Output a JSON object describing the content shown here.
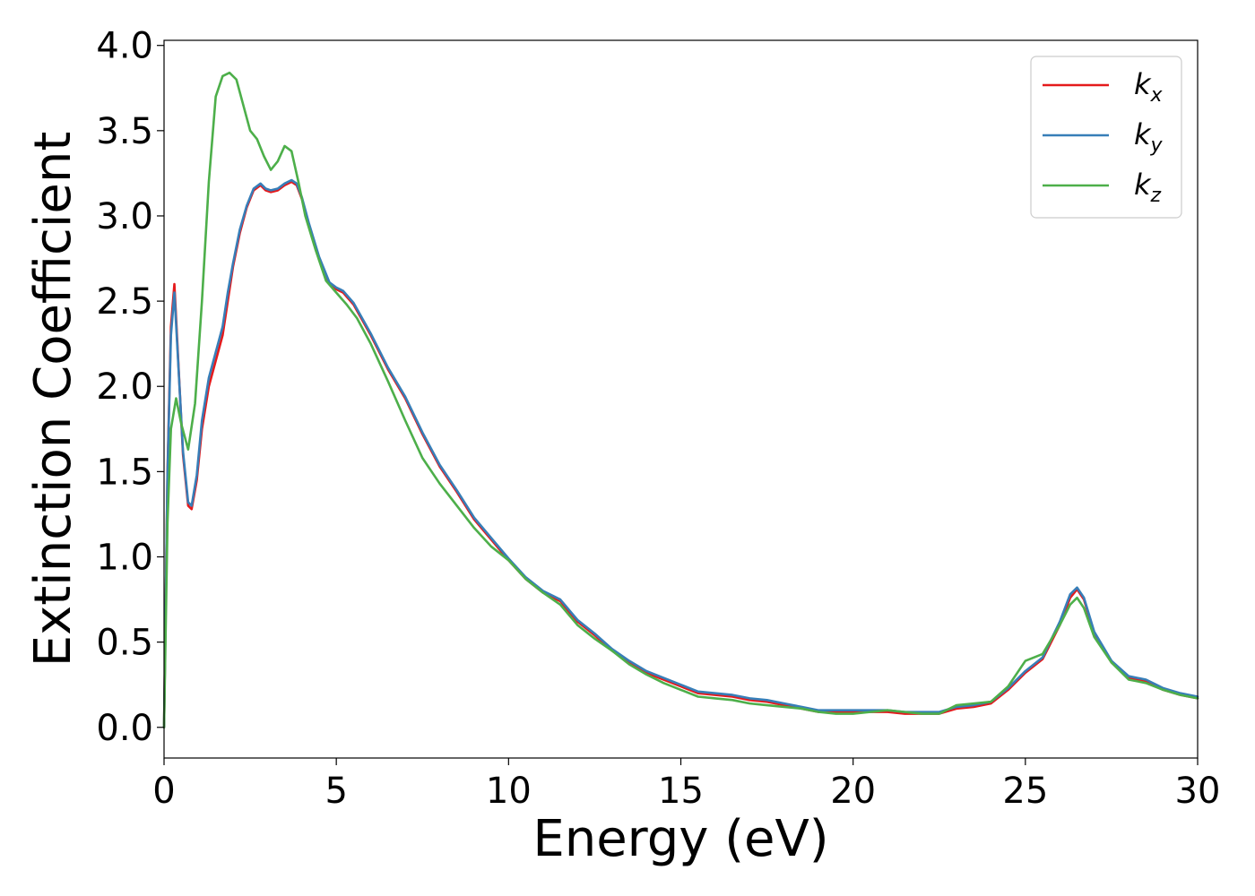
{
  "chart_data": {
    "type": "line",
    "xlabel": "Energy (eV)",
    "ylabel": "Extinction Coefficient",
    "xlim": [
      0,
      30
    ],
    "ylim": [
      -0.18,
      4.03
    ],
    "xticks": [
      0,
      5,
      10,
      15,
      20,
      25,
      30
    ],
    "xtick_labels": [
      "0",
      "5",
      "10",
      "15",
      "20",
      "25",
      "30"
    ],
    "yticks": [
      0.0,
      0.5,
      1.0,
      1.5,
      2.0,
      2.5,
      3.0,
      3.5,
      4.0
    ],
    "ytick_labels": [
      "0.0",
      "0.5",
      "1.0",
      "1.5",
      "2.0",
      "2.5",
      "3.0",
      "3.5",
      "4.0"
    ],
    "grid": false,
    "legend_position": "top-right",
    "series": [
      {
        "name": "k_x",
        "label_base": "k",
        "label_sub": "x",
        "color": "#e41a1c",
        "x": [
          0,
          0.1,
          0.2,
          0.3,
          0.4,
          0.55,
          0.7,
          0.8,
          0.95,
          1.1,
          1.3,
          1.5,
          1.7,
          1.85,
          2.0,
          2.2,
          2.4,
          2.6,
          2.8,
          2.95,
          3.1,
          3.3,
          3.5,
          3.7,
          3.85,
          4.0,
          4.2,
          4.5,
          4.8,
          5.0,
          5.2,
          5.5,
          6.0,
          6.5,
          7.0,
          7.5,
          8.0,
          8.5,
          9.0,
          9.5,
          10.0,
          10.5,
          11.0,
          11.5,
          12.0,
          12.5,
          13.0,
          13.5,
          14.0,
          14.5,
          15.0,
          15.5,
          16.0,
          16.5,
          17.0,
          17.5,
          18.0,
          18.5,
          19.0,
          19.5,
          20.0,
          20.5,
          21.0,
          21.5,
          22.0,
          22.5,
          23.0,
          23.5,
          24.0,
          24.5,
          25.0,
          25.5,
          26.0,
          26.3,
          26.5,
          26.7,
          27.0,
          27.5,
          28.0,
          28.5,
          29.0,
          29.5,
          30.0
        ],
        "y": [
          0.0,
          1.5,
          2.35,
          2.6,
          2.2,
          1.6,
          1.3,
          1.28,
          1.45,
          1.75,
          2.0,
          2.15,
          2.3,
          2.5,
          2.7,
          2.9,
          3.05,
          3.15,
          3.18,
          3.15,
          3.14,
          3.15,
          3.18,
          3.2,
          3.18,
          3.1,
          2.95,
          2.75,
          2.6,
          2.57,
          2.55,
          2.48,
          2.3,
          2.1,
          1.93,
          1.72,
          1.53,
          1.38,
          1.22,
          1.1,
          0.98,
          0.87,
          0.79,
          0.74,
          0.62,
          0.54,
          0.45,
          0.38,
          0.32,
          0.28,
          0.24,
          0.2,
          0.19,
          0.18,
          0.16,
          0.15,
          0.13,
          0.11,
          0.09,
          0.09,
          0.09,
          0.09,
          0.09,
          0.08,
          0.08,
          0.08,
          0.11,
          0.12,
          0.14,
          0.22,
          0.32,
          0.4,
          0.6,
          0.76,
          0.81,
          0.75,
          0.55,
          0.38,
          0.29,
          0.27,
          0.22,
          0.19,
          0.17
        ]
      },
      {
        "name": "k_y",
        "label_base": "k",
        "label_sub": "y",
        "color": "#377eb8",
        "x": [
          0,
          0.1,
          0.2,
          0.3,
          0.4,
          0.55,
          0.7,
          0.8,
          0.95,
          1.1,
          1.3,
          1.5,
          1.7,
          1.85,
          2.0,
          2.2,
          2.4,
          2.6,
          2.8,
          2.95,
          3.1,
          3.3,
          3.5,
          3.7,
          3.85,
          4.0,
          4.2,
          4.5,
          4.8,
          5.0,
          5.2,
          5.5,
          6.0,
          6.5,
          7.0,
          7.5,
          8.0,
          8.5,
          9.0,
          9.5,
          10.0,
          10.5,
          11.0,
          11.5,
          12.0,
          12.5,
          13.0,
          13.5,
          14.0,
          14.5,
          15.0,
          15.5,
          16.0,
          16.5,
          17.0,
          17.5,
          18.0,
          18.5,
          19.0,
          19.5,
          20.0,
          20.5,
          21.0,
          21.5,
          22.0,
          22.5,
          23.0,
          23.5,
          24.0,
          24.5,
          25.0,
          25.5,
          26.0,
          26.3,
          26.5,
          26.7,
          27.0,
          27.5,
          28.0,
          28.5,
          29.0,
          29.5,
          30.0
        ],
        "y": [
          0.0,
          1.48,
          2.3,
          2.55,
          2.18,
          1.62,
          1.32,
          1.3,
          1.48,
          1.8,
          2.05,
          2.2,
          2.35,
          2.55,
          2.72,
          2.92,
          3.06,
          3.16,
          3.19,
          3.16,
          3.15,
          3.16,
          3.19,
          3.21,
          3.19,
          3.11,
          2.96,
          2.76,
          2.61,
          2.58,
          2.56,
          2.49,
          2.31,
          2.11,
          1.94,
          1.73,
          1.54,
          1.39,
          1.23,
          1.11,
          0.99,
          0.88,
          0.8,
          0.75,
          0.63,
          0.55,
          0.46,
          0.39,
          0.33,
          0.29,
          0.25,
          0.21,
          0.2,
          0.19,
          0.17,
          0.16,
          0.14,
          0.12,
          0.1,
          0.1,
          0.1,
          0.1,
          0.1,
          0.09,
          0.09,
          0.09,
          0.12,
          0.13,
          0.15,
          0.23,
          0.33,
          0.41,
          0.62,
          0.78,
          0.82,
          0.76,
          0.56,
          0.39,
          0.3,
          0.28,
          0.23,
          0.2,
          0.18
        ]
      },
      {
        "name": "k_z",
        "label_base": "k",
        "label_sub": "z",
        "color": "#4daf4a",
        "x": [
          0,
          0.1,
          0.2,
          0.35,
          0.5,
          0.7,
          0.9,
          1.1,
          1.3,
          1.5,
          1.7,
          1.9,
          2.1,
          2.3,
          2.5,
          2.7,
          2.9,
          3.1,
          3.3,
          3.5,
          3.7,
          3.9,
          4.1,
          4.4,
          4.7,
          5.0,
          5.3,
          5.6,
          6.0,
          6.5,
          7.0,
          7.5,
          8.0,
          8.5,
          9.0,
          9.5,
          10.0,
          10.5,
          11.0,
          11.5,
          12.0,
          12.5,
          13.0,
          13.5,
          14.0,
          14.5,
          15.0,
          15.5,
          16.0,
          16.5,
          17.0,
          17.5,
          18.0,
          18.5,
          19.0,
          19.5,
          20.0,
          20.5,
          21.0,
          21.5,
          22.0,
          22.5,
          23.0,
          23.5,
          24.0,
          24.5,
          25.0,
          25.5,
          26.0,
          26.3,
          26.5,
          26.7,
          27.0,
          27.5,
          28.0,
          28.5,
          29.0,
          29.5,
          30.0
        ],
        "y": [
          0.0,
          1.2,
          1.75,
          1.93,
          1.78,
          1.63,
          1.9,
          2.5,
          3.2,
          3.7,
          3.82,
          3.84,
          3.8,
          3.65,
          3.5,
          3.45,
          3.35,
          3.27,
          3.32,
          3.41,
          3.38,
          3.2,
          3.0,
          2.8,
          2.62,
          2.55,
          2.48,
          2.4,
          2.25,
          2.03,
          1.8,
          1.58,
          1.43,
          1.3,
          1.17,
          1.06,
          0.98,
          0.87,
          0.79,
          0.72,
          0.6,
          0.52,
          0.45,
          0.37,
          0.31,
          0.26,
          0.22,
          0.18,
          0.17,
          0.16,
          0.14,
          0.13,
          0.12,
          0.11,
          0.09,
          0.08,
          0.08,
          0.09,
          0.1,
          0.09,
          0.08,
          0.08,
          0.13,
          0.14,
          0.15,
          0.24,
          0.39,
          0.43,
          0.6,
          0.72,
          0.76,
          0.7,
          0.53,
          0.38,
          0.28,
          0.26,
          0.22,
          0.19,
          0.17
        ]
      }
    ]
  }
}
